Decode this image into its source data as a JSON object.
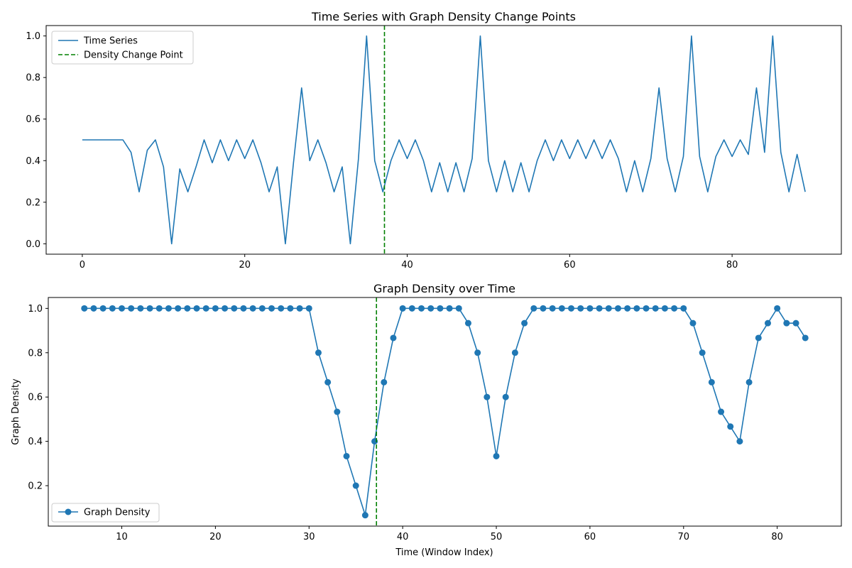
{
  "chart_data": [
    {
      "type": "line",
      "title": "Time Series with Graph Density Change Points",
      "xlabel": "",
      "ylabel": "",
      "xlim": [
        -4.45,
        93.45
      ],
      "ylim": [
        -0.05,
        1.05
      ],
      "xticks": [
        0,
        20,
        40,
        60,
        80
      ],
      "yticks": [
        0.0,
        0.2,
        0.4,
        0.6,
        0.8,
        1.0
      ],
      "ytick_labels": [
        "0.0",
        "0.2",
        "0.4",
        "0.6",
        "0.8",
        "1.0"
      ],
      "legend_position": "upper-left",
      "series": [
        {
          "name": "Time Series",
          "color": "#1f77b4",
          "x": [
            0,
            1,
            2,
            3,
            4,
            5,
            6,
            7,
            8,
            9,
            10,
            11,
            12,
            13,
            14,
            15,
            16,
            17,
            18,
            19,
            20,
            21,
            22,
            23,
            24,
            25,
            26,
            27,
            28,
            29,
            30,
            31,
            32,
            33,
            34,
            35,
            36,
            37,
            38,
            39,
            40,
            41,
            42,
            43,
            44,
            45,
            46,
            47,
            48,
            49,
            50,
            51,
            52,
            53,
            54,
            55,
            56,
            57,
            58,
            59,
            60,
            61,
            62,
            63,
            64,
            65,
            66,
            67,
            68,
            69,
            70,
            71,
            72,
            73,
            74,
            75,
            76,
            77,
            78,
            79,
            80,
            81,
            82,
            83,
            84,
            85,
            86,
            87,
            88,
            89
          ],
          "values": [
            0.5,
            0.5,
            0.5,
            0.5,
            0.5,
            0.5,
            0.44,
            0.25,
            0.45,
            0.5,
            0.37,
            0.0,
            0.36,
            0.25,
            0.37,
            0.5,
            0.39,
            0.5,
            0.4,
            0.5,
            0.41,
            0.5,
            0.39,
            0.25,
            0.37,
            0.0,
            0.39,
            0.75,
            0.4,
            0.5,
            0.39,
            0.25,
            0.37,
            0.0,
            0.41,
            1.0,
            0.4,
            0.25,
            0.4,
            0.5,
            0.41,
            0.5,
            0.4,
            0.25,
            0.39,
            0.25,
            0.39,
            0.25,
            0.41,
            1.0,
            0.4,
            0.25,
            0.4,
            0.25,
            0.39,
            0.25,
            0.4,
            0.5,
            0.4,
            0.5,
            0.41,
            0.5,
            0.41,
            0.5,
            0.41,
            0.5,
            0.41,
            0.25,
            0.4,
            0.25,
            0.41,
            0.75,
            0.41,
            0.25,
            0.42,
            1.0,
            0.42,
            0.25,
            0.42,
            0.5,
            0.42,
            0.5,
            0.43,
            0.75,
            0.44,
            1.0,
            0.44,
            0.25,
            0.43,
            0.25
          ]
        }
      ],
      "vlines": [
        {
          "name": "Density Change Point",
          "x": 37.2,
          "color": "#008000"
        }
      ]
    },
    {
      "type": "line",
      "title": "Graph Density over Time",
      "xlabel": "Time (Window Index)",
      "ylabel": "Graph Density",
      "xlim": [
        2.15,
        86.85
      ],
      "ylim": [
        0.0175,
        1.0492
      ],
      "xticks": [
        10,
        20,
        30,
        40,
        50,
        60,
        70,
        80
      ],
      "yticks": [
        0.2,
        0.4,
        0.6,
        0.8,
        1.0
      ],
      "ytick_labels": [
        "0.2",
        "0.4",
        "0.6",
        "0.8",
        "1.0"
      ],
      "legend_position": "lower-left",
      "series": [
        {
          "name": "Graph Density",
          "color": "#1f77b4",
          "marker": "circle",
          "x": [
            6,
            7,
            8,
            9,
            10,
            11,
            12,
            13,
            14,
            15,
            16,
            17,
            18,
            19,
            20,
            21,
            22,
            23,
            24,
            25,
            26,
            27,
            28,
            29,
            30,
            31,
            32,
            33,
            34,
            35,
            36,
            37,
            38,
            39,
            40,
            41,
            42,
            43,
            44,
            45,
            46,
            47,
            48,
            49,
            50,
            51,
            52,
            53,
            54,
            55,
            56,
            57,
            58,
            59,
            60,
            61,
            62,
            63,
            64,
            65,
            66,
            67,
            68,
            69,
            70,
            71,
            72,
            73,
            74,
            75,
            76,
            77,
            78,
            79,
            80,
            81,
            82,
            83
          ],
          "values": [
            1.0,
            1.0,
            1.0,
            1.0,
            1.0,
            1.0,
            1.0,
            1.0,
            1.0,
            1.0,
            1.0,
            1.0,
            1.0,
            1.0,
            1.0,
            1.0,
            1.0,
            1.0,
            1.0,
            1.0,
            1.0,
            1.0,
            1.0,
            1.0,
            1.0,
            0.8,
            0.6667,
            0.5333,
            0.3333,
            0.2,
            0.0667,
            0.4,
            0.6667,
            0.8667,
            1.0,
            1.0,
            1.0,
            1.0,
            1.0,
            1.0,
            1.0,
            0.9333,
            0.8,
            0.6,
            0.3333,
            0.6,
            0.8,
            0.9333,
            1.0,
            1.0,
            1.0,
            1.0,
            1.0,
            1.0,
            1.0,
            1.0,
            1.0,
            1.0,
            1.0,
            1.0,
            1.0,
            1.0,
            1.0,
            1.0,
            1.0,
            0.9333,
            0.8,
            0.6667,
            0.5333,
            0.4667,
            0.4,
            0.6667,
            0.8667,
            0.9333,
            1.0,
            0.9333,
            0.9333,
            0.8667
          ]
        }
      ],
      "vlines": [
        {
          "name": "Density Change Point",
          "x": 37.2,
          "color": "#008000"
        }
      ]
    }
  ]
}
